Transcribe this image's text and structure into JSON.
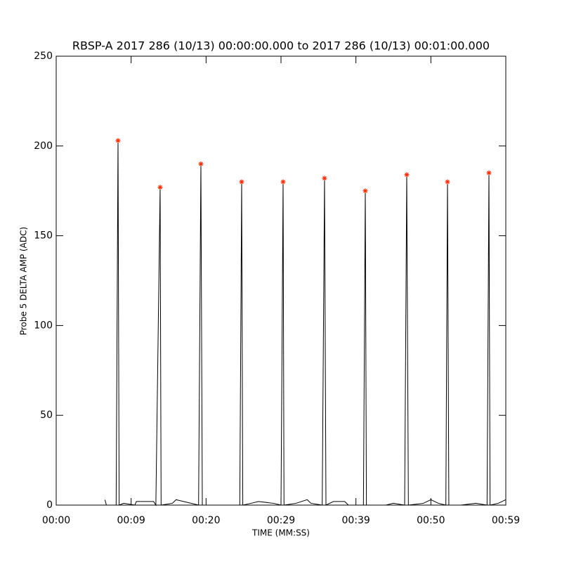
{
  "chart_data": {
    "type": "line",
    "title": "RBSP-A 2017 286 (10/13) 00:00:00.000 to 2017 286 (10/13) 00:01:00.000",
    "x_label": "TIME (MM:SS)",
    "y_label": "Probe 5 DELTA AMP (ADC)",
    "xlim": [
      0,
      60
    ],
    "ylim": [
      0,
      250
    ],
    "xticks": [
      {
        "value": 0,
        "label": "00:00"
      },
      {
        "value": 10,
        "label": "00:09"
      },
      {
        "value": 20,
        "label": "00:20"
      },
      {
        "value": 30,
        "label": "00:29"
      },
      {
        "value": 40,
        "label": "00:39"
      },
      {
        "value": 50,
        "label": "00:50"
      },
      {
        "value": 60,
        "label": "00:59"
      }
    ],
    "yticks": [
      0,
      50,
      100,
      150,
      200,
      250
    ],
    "grid": false,
    "series": [
      {
        "color": "#000000",
        "marker": "none",
        "x": [
          6.5,
          6.7,
          8.0,
          8.25,
          8.4,
          9.0,
          10.5,
          10.7,
          13.0,
          13.3,
          13.87,
          14.0,
          15.5,
          16.0,
          17.0,
          19.0,
          19.31,
          19.5,
          21.0,
          24.5,
          24.75,
          24.9,
          26.0,
          27.0,
          29.0,
          30.0,
          30.28,
          30.4,
          32.0,
          33.5,
          34.0,
          35.5,
          35.81,
          36.0,
          37.0,
          38.5,
          39.0,
          41.0,
          41.25,
          41.4,
          44.0,
          45.0,
          46.5,
          46.78,
          47.0,
          49.0,
          50.0,
          51.0,
          52.0,
          52.22,
          52.4,
          54.0,
          56.0,
          57.5,
          57.75,
          57.9,
          59.0,
          60.0
        ],
        "values": [
          3,
          0,
          0,
          203,
          0,
          1,
          0,
          2,
          2,
          0,
          177,
          0,
          1,
          3,
          2,
          0,
          190,
          0,
          0,
          0,
          180,
          0,
          1,
          2,
          1,
          0,
          180,
          0,
          1,
          3,
          1,
          0,
          182,
          0,
          2,
          2,
          0,
          0,
          175,
          0,
          0,
          1,
          0,
          184,
          0,
          1,
          3,
          1,
          0,
          180,
          0,
          0,
          1,
          0,
          185,
          0,
          1,
          3
        ]
      },
      {
        "color": "#ff2a00",
        "marker": "asterisk",
        "x": [
          8.25,
          13.87,
          19.31,
          24.75,
          30.28,
          35.81,
          41.25,
          46.78,
          52.22,
          57.75
        ],
        "values": [
          203,
          177,
          190,
          180,
          180,
          182,
          175,
          184,
          180,
          185
        ]
      }
    ]
  }
}
